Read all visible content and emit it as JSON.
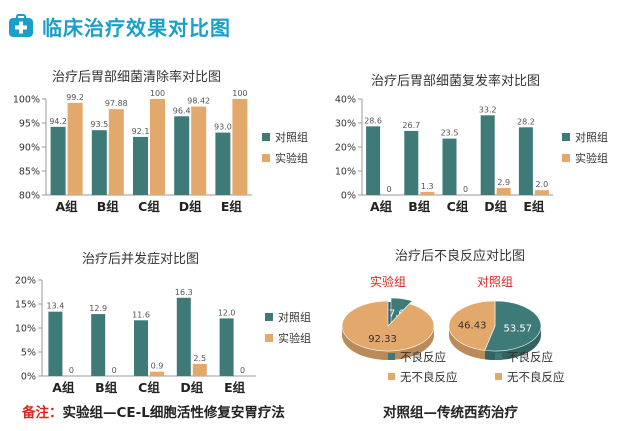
{
  "header": {
    "title": "临床治疗效果对比图"
  },
  "colors": {
    "control": "#3e7a78",
    "experiment": "#e3a86c",
    "axis": "#999999",
    "grid": "#bbbbbb"
  },
  "footnote": {
    "label": "备注：",
    "text1": "实验组—CE-L细胞活性修复安胃疗法",
    "text2": "对照组—传统西药治疗"
  },
  "chart_data": [
    {
      "type": "bar",
      "title": "治疗后胃部细菌清除率对比图",
      "categories": [
        "A组",
        "B组",
        "C组",
        "D组",
        "E组"
      ],
      "series": [
        {
          "name": "对照组",
          "values": [
            94.2,
            93.5,
            92.1,
            96.4,
            93.0
          ],
          "labels": [
            "94.2",
            "93.5",
            "92.1",
            "96.4",
            "93.0"
          ]
        },
        {
          "name": "实验组",
          "values": [
            99.2,
            97.88,
            100,
            98.42,
            100
          ],
          "labels": [
            "99.2",
            "97.88",
            "100",
            "98.42",
            "100"
          ]
        }
      ],
      "ylim": [
        80,
        100
      ],
      "yticks": [
        "80%",
        "85%",
        "90%",
        "95%",
        "100%"
      ],
      "ytick_values": [
        80,
        85,
        90,
        95,
        100
      ],
      "legend": "right"
    },
    {
      "type": "bar",
      "title": "治疗后胃部细菌复发率对比图",
      "categories": [
        "A组",
        "B组",
        "C组",
        "D组",
        "E组"
      ],
      "series": [
        {
          "name": "对照组",
          "values": [
            28.6,
            26.7,
            23.5,
            33.2,
            28.2
          ],
          "labels": [
            "28.6",
            "26.7",
            "23.5",
            "33.2",
            "28.2"
          ]
        },
        {
          "name": "实验组",
          "values": [
            0,
            1.3,
            0,
            2.9,
            2.0
          ],
          "labels": [
            "0",
            "1.3",
            "0",
            "2.9",
            "2.0"
          ]
        }
      ],
      "ylim": [
        0,
        40
      ],
      "yticks": [
        "0%",
        "10%",
        "20%",
        "30%",
        "40%"
      ],
      "ytick_values": [
        0,
        10,
        20,
        30,
        40
      ],
      "legend": "right"
    },
    {
      "type": "bar",
      "title": "治疗后并发症对比图",
      "categories": [
        "A组",
        "B组",
        "C组",
        "D组",
        "E组"
      ],
      "series": [
        {
          "name": "对照组",
          "values": [
            13.4,
            12.9,
            11.6,
            16.3,
            12.0
          ],
          "labels": [
            "13.4",
            "12.9",
            "11.6",
            "16.3",
            "12.0"
          ]
        },
        {
          "name": "实验组",
          "values": [
            0,
            0,
            0.9,
            2.5,
            0
          ],
          "labels": [
            "0",
            "0",
            "0.9",
            "2.5",
            "0"
          ]
        }
      ],
      "ylim": [
        0,
        20
      ],
      "yticks": [
        "0%",
        "5%",
        "10%",
        "15%",
        "20%"
      ],
      "ytick_values": [
        0,
        5,
        10,
        15,
        20
      ],
      "legend": "right"
    },
    {
      "type": "pie",
      "title": "治疗后不良反应对比图",
      "pies": [
        {
          "name": "实验组",
          "slices": [
            {
              "label": "不良反应",
              "value": 7.67
            },
            {
              "label": "无不良反应",
              "value": 92.33
            }
          ]
        },
        {
          "name": "对照组",
          "slices": [
            {
              "label": "不良反应",
              "value": 53.57
            },
            {
              "label": "无不良反应",
              "value": 46.43
            }
          ]
        }
      ],
      "legend_labels": [
        "不良反应",
        "无不良反应"
      ]
    }
  ]
}
